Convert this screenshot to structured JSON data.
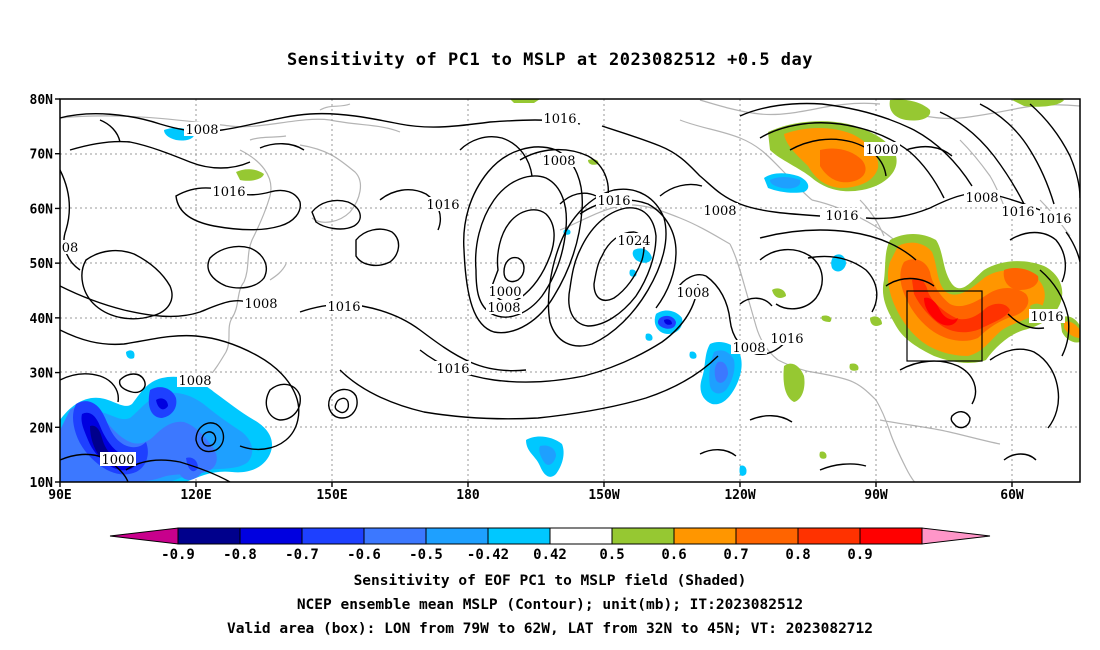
{
  "title": "Sensitivity of PC1 to MSLP at 2023082512 +0.5 day",
  "axes": {
    "y_ticks": [
      "80N",
      "70N",
      "60N",
      "50N",
      "40N",
      "30N",
      "20N",
      "10N"
    ],
    "x_ticks": [
      "90E",
      "120E",
      "150E",
      "180",
      "150W",
      "120W",
      "90W",
      "60W"
    ]
  },
  "contour_labels": [
    {
      "text": "1008"
    },
    {
      "text": "1016"
    },
    {
      "text": "1008"
    },
    {
      "text": "1016"
    },
    {
      "text": "1008"
    },
    {
      "text": "1016"
    },
    {
      "text": "1000"
    },
    {
      "text": "1000"
    },
    {
      "text": "1008"
    },
    {
      "text": "1016"
    },
    {
      "text": "08"
    },
    {
      "text": "1016"
    },
    {
      "text": "1024"
    },
    {
      "text": "1000"
    },
    {
      "text": "1008"
    },
    {
      "text": "1016"
    },
    {
      "text": "1008"
    },
    {
      "text": "1016"
    },
    {
      "text": "1008"
    },
    {
      "text": "1016"
    },
    {
      "text": "1016"
    },
    {
      "text": "1008"
    },
    {
      "text": "1008"
    },
    {
      "text": "1016"
    }
  ],
  "colorbar": {
    "labels": [
      "-0.9",
      "-0.8",
      "-0.7",
      "-0.6",
      "-0.5",
      "-0.42",
      "0.42",
      "0.5",
      "0.6",
      "0.7",
      "0.8",
      "0.9"
    ],
    "colors": [
      "#c8008c",
      "#00008c",
      "#0000e0",
      "#1e40ff",
      "#3c78ff",
      "#1ea0ff",
      "#00c8ff",
      "#ffffff",
      "#96c832",
      "#ff9600",
      "#ff6400",
      "#ff3200",
      "#ff0000",
      "#ff96c8"
    ]
  },
  "shading_colors": {
    "green": "#96c832",
    "orange": "#ff9600",
    "dark_orange": "#ff6400",
    "red": "#ff3200",
    "cyan": "#00c8ff",
    "light_blue": "#1ea0ff",
    "blue": "#1e40ff",
    "dark_blue": "#0000e0"
  },
  "footer": {
    "line1": "Sensitivity of EOF PC1 to MSLP field (Shaded)",
    "line2": "NCEP ensemble mean MSLP (Contour); unit(mb); IT:2023082512",
    "line3": "Valid area (box): LON from 79W to 62W, LAT from 32N to 45N; VT: 2023082712"
  }
}
